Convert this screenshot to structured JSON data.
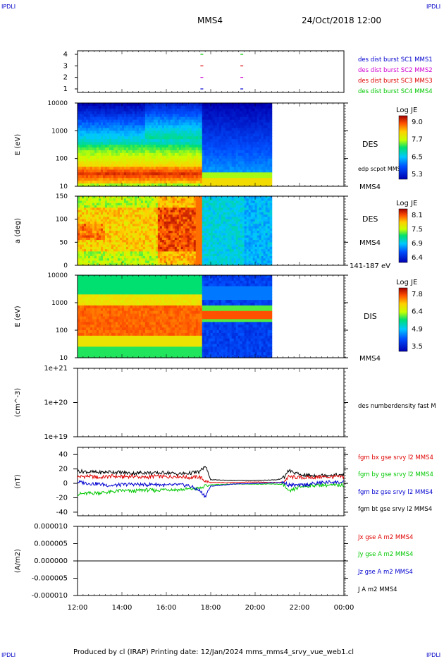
{
  "corners": {
    "top_left": "IPDLI",
    "top_right": "IPDLI",
    "bottom_left": "IPDLI",
    "bottom_right": "IPDLI"
  },
  "header": {
    "spacecraft": "MMS4",
    "datetime": "24/Oct/2018 12:00"
  },
  "footer": {
    "text": "Produced by cl (IRAP)   Printing date: 12/Jan/2024   mms_mms4_srvy_vue_web1.cl"
  },
  "colors": {
    "red": "#e00000",
    "green": "#00c800",
    "blue": "#0000d0",
    "magenta": "#d000d0",
    "black": "#000000"
  },
  "chart_data": [
    {
      "type": "scatter",
      "panel": "burst-availability",
      "yticks": [
        "4",
        "3",
        "2",
        "1"
      ],
      "series": [
        {
          "name": "des dist burst SC1 MMS1",
          "color": "#0000d0",
          "y": 1,
          "x_hours": [
            17.6,
            19.4
          ]
        },
        {
          "name": "des dist burst SC2 MMS2",
          "color": "#d000d0",
          "y": 2,
          "x_hours": [
            17.6,
            19.4
          ]
        },
        {
          "name": "des dist burst SC3 MMS3",
          "color": "#e00000",
          "y": 3,
          "x_hours": [
            17.6,
            19.4
          ]
        },
        {
          "name": "des dist burst SC4 MMS4",
          "color": "#00c800",
          "y": 4,
          "x_hours": [
            17.6,
            19.4
          ]
        }
      ]
    },
    {
      "type": "heatmap",
      "panel": "des-energy",
      "ylabel": "E (eV)",
      "yticks": [
        "10000",
        "1000",
        "100",
        "10"
      ],
      "label": "DES",
      "overlay_label": "edp scpot MMS4",
      "spacecraft": "MMS4",
      "colorbar": {
        "title": "Log JE",
        "ticks": [
          "9.0",
          "7.7",
          "6.5",
          "5.3"
        ]
      }
    },
    {
      "type": "heatmap",
      "panel": "des-pitch-angle",
      "ylabel": "a (deg)",
      "yticks": [
        "150",
        "100",
        "50",
        "0"
      ],
      "label": "DES",
      "spacecraft": "MMS4",
      "energy_range": "141-187 eV",
      "colorbar": {
        "title": "Log JE",
        "ticks": [
          "8.1",
          "7.5",
          "6.9",
          "6.4"
        ]
      }
    },
    {
      "type": "heatmap",
      "panel": "dis-energy",
      "ylabel": "E (eV)",
      "yticks": [
        "10000",
        "1000",
        "100",
        "10"
      ],
      "label": "DIS",
      "spacecraft": "MMS4",
      "colorbar": {
        "title": "Log JE",
        "ticks": [
          "7.8",
          "6.4",
          "4.9",
          "3.5"
        ]
      }
    },
    {
      "type": "line",
      "panel": "density",
      "ylabel": "(cm^-3)",
      "yticks": [
        "1e+21",
        "1e+20",
        "1e+19"
      ],
      "series": [
        {
          "name": "des numberdensity fast M",
          "color": "#000000",
          "x_hours": [],
          "y": []
        }
      ]
    },
    {
      "type": "line",
      "panel": "magnetic-field",
      "ylabel": "(nT)",
      "ylim": [
        -45,
        50
      ],
      "yticks": [
        "40",
        "20",
        "0",
        "-20",
        "-40"
      ],
      "series": [
        {
          "name": "fgm bx gse srvy l2 MMS4",
          "color": "#e00000",
          "x_hours": [
            12.0,
            12.5,
            13.0,
            13.5,
            14.0,
            14.5,
            15.0,
            15.5,
            16.0,
            16.5,
            17.0,
            17.5,
            17.75,
            18.0,
            19.0,
            20.0,
            21.0,
            21.3,
            21.5,
            22.0,
            22.5,
            23.0,
            23.5,
            24.0
          ],
          "y": [
            9,
            10,
            8,
            10,
            9,
            10,
            8,
            10,
            9,
            10,
            8,
            9,
            3,
            1,
            1,
            2,
            1,
            2,
            9,
            8,
            8,
            9,
            9,
            9
          ]
        },
        {
          "name": "fgm by gse srvy l2 MMS4",
          "color": "#00c800",
          "x_hours": [
            12.0,
            12.5,
            13.0,
            13.5,
            14.0,
            14.5,
            15.0,
            15.5,
            16.0,
            16.5,
            17.0,
            17.5,
            17.75,
            18.0,
            19.0,
            20.0,
            21.0,
            21.3,
            21.5,
            22.0,
            22.5,
            23.0,
            23.5,
            24.0
          ],
          "y": [
            -15,
            -14,
            -13,
            -12,
            -10,
            -11,
            -9,
            -10,
            -8,
            -9,
            -8,
            -7,
            -4,
            -2,
            -1,
            -1,
            -1,
            -2,
            -12,
            -5,
            -3,
            -2,
            -3,
            -2
          ]
        },
        {
          "name": "fgm bz gse srvy l2 MMS4",
          "color": "#0000d0",
          "x_hours": [
            12.0,
            12.5,
            13.0,
            13.5,
            14.0,
            14.5,
            15.0,
            15.5,
            16.0,
            16.5,
            17.0,
            17.5,
            17.75,
            18.0,
            19.0,
            20.0,
            21.0,
            21.3,
            21.5,
            22.0,
            22.5,
            23.0,
            23.5,
            24.0
          ],
          "y": [
            2,
            0,
            -1,
            -3,
            -2,
            -1,
            -2,
            -1,
            -3,
            -2,
            -3,
            -10,
            -18,
            -4,
            -1,
            0,
            1,
            1,
            -2,
            -3,
            -1,
            1,
            2,
            1
          ]
        },
        {
          "name": "J A m2 MMS4",
          "color": "#000000",
          "x_hours": [
            12.0,
            12.5,
            13.0,
            13.5,
            14.0,
            14.5,
            15.0,
            15.5,
            16.0,
            16.5,
            17.0,
            17.5,
            17.75,
            18.0,
            19.0,
            20.0,
            21.0,
            21.3,
            21.5,
            22.0,
            22.5,
            23.0,
            23.5,
            24.0
          ],
          "y": [
            17,
            16,
            15,
            16,
            15,
            14,
            15,
            14,
            15,
            13,
            14,
            16,
            24,
            5,
            4,
            4,
            5,
            8,
            18,
            12,
            11,
            11,
            12,
            11
          ]
        }
      ],
      "bt_label": "fgm bt gse srvy l2 MMS4"
    },
    {
      "type": "line",
      "panel": "current-density",
      "ylabel": "(A/m2)",
      "ylim": [
        -1e-05,
        1e-05
      ],
      "yticks": [
        "0.000010",
        "0.000005",
        "0.000000",
        "-0.000005",
        "-0.000010"
      ],
      "series": [
        {
          "name": "Jx gse A m2 MMS4",
          "color": "#e00000",
          "x_hours": [
            12,
            24
          ],
          "y": [
            0,
            0
          ]
        },
        {
          "name": "Jy gse A m2 MMS4",
          "color": "#00c800",
          "x_hours": [
            12,
            24
          ],
          "y": [
            0,
            0
          ]
        },
        {
          "name": "Jz gse A m2 MMS4",
          "color": "#0000d0",
          "x_hours": [
            12,
            24
          ],
          "y": [
            0,
            0
          ]
        },
        {
          "name": "fgm bt gse srvy l2 MMS4",
          "color": "#000000",
          "x_hours": [
            12,
            24
          ],
          "y": [
            0,
            0
          ]
        }
      ]
    }
  ],
  "xaxis": {
    "ticks": [
      "12:00",
      "14:00",
      "16:00",
      "18:00",
      "20:00",
      "22:00",
      "00:00"
    ],
    "range_hours": [
      12,
      24
    ]
  }
}
